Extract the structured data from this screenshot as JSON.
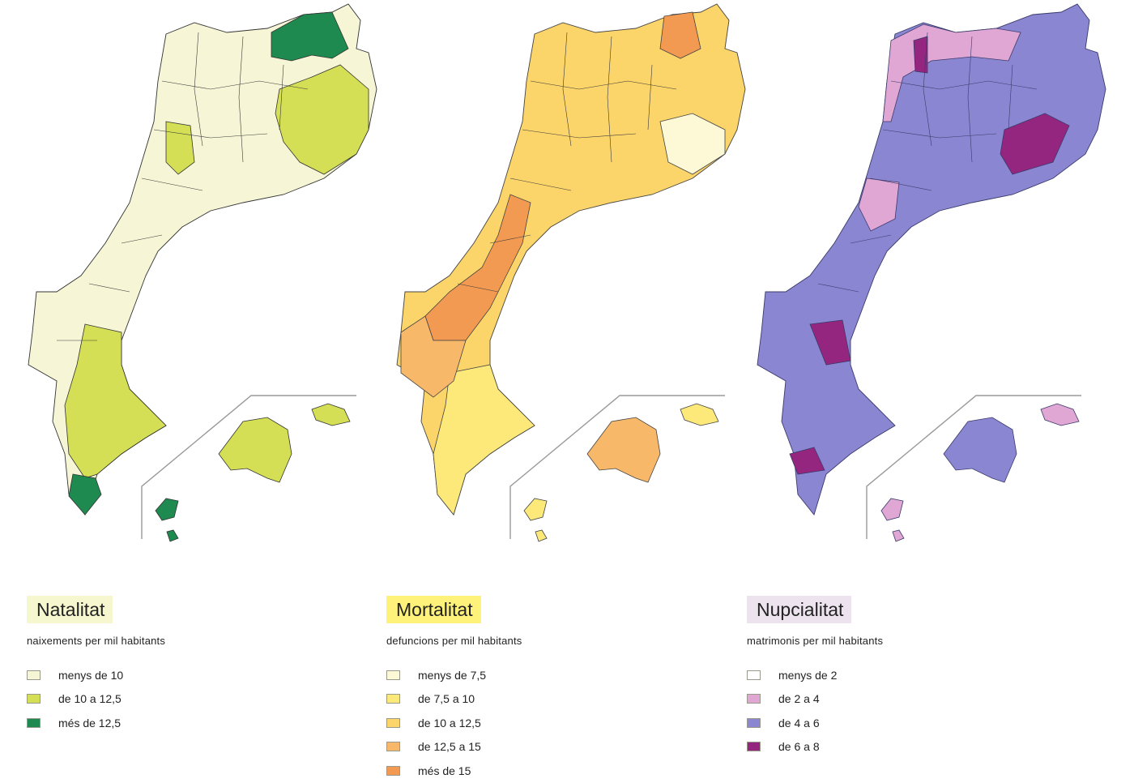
{
  "maps": [
    {
      "title": "Natalitat",
      "title_bg": "#f6f6cf",
      "subtitle": "naixements per mil habitants",
      "legend": [
        {
          "label": "menys de 10",
          "color": "#f6f6d6"
        },
        {
          "label": "de 10 a 12,5",
          "color": "#d4df55"
        },
        {
          "label": "més de 12,5",
          "color": "#1f8a4f"
        }
      ],
      "fills": {
        "base": "#f6f6d6",
        "south": "#d4df55",
        "east": "#d4df55",
        "north_region": "#1f8a4f",
        "south_tip": "#1f8a4f",
        "mallorca": "#d4df55",
        "menorca": "#d4df55",
        "eivissa": "#1f8a4f"
      }
    },
    {
      "title": "Mortalitat",
      "title_bg": "#fff27a",
      "subtitle": "defuncions per mil habitants",
      "legend": [
        {
          "label": "menys de 7,5",
          "color": "#fdf8d6"
        },
        {
          "label": "de 7,5 a 10",
          "color": "#fce97a"
        },
        {
          "label": "de 10 a 12,5",
          "color": "#fbd46a"
        },
        {
          "label": "de 12,5 a 15",
          "color": "#f8b86a"
        },
        {
          "label": "més de 15",
          "color": "#f39a52"
        }
      ],
      "fills": {
        "base": "#fbd46a",
        "south": "#fce97a",
        "east": "#fdf8d6",
        "north_region": "#f39a52",
        "west_band": "#f39a52",
        "west": "#f8b86a",
        "mallorca": "#f8b86a",
        "menorca": "#fce97a",
        "eivissa": "#fce97a"
      }
    },
    {
      "title": "Nupcialitat",
      "title_bg": "#ece3ee",
      "subtitle": "matrimonis per mil habitants",
      "legend": [
        {
          "label": "menys de 2",
          "color": "#ffffff"
        },
        {
          "label": "de 2 a 4",
          "color": "#e0a6d4"
        },
        {
          "label": "de 4 a 6",
          "color": "#8b86d2"
        },
        {
          "label": "de 6 a 8",
          "color": "#95267f"
        }
      ],
      "fills": {
        "base": "#8b86d2",
        "west": "#e0a6d4",
        "north_region": "#e0a6d4",
        "hot": "#95267f",
        "south_tip": "#95267f",
        "mallorca": "#8b86d2",
        "menorca": "#e0a6d4",
        "eivissa": "#e0a6d4"
      }
    }
  ]
}
